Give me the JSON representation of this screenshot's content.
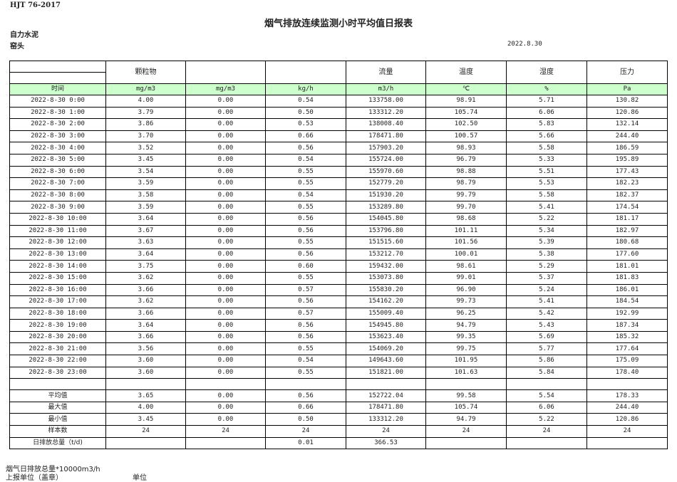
{
  "header": {
    "standard": "HJT  76-2017",
    "title": "烟气排放连续监测小时平均值日报表",
    "company": "自力水泥",
    "site": "窑头",
    "date": "2022.8.30"
  },
  "columns": [
    "",
    "颗粒物",
    "",
    "",
    "流量",
    "温度",
    "湿度",
    "压力"
  ],
  "units": [
    "时间",
    "mg/m3",
    "mg/m3",
    "kg/h",
    "m3/h",
    "℃",
    "%",
    "Pa"
  ],
  "rows": [
    [
      "2022-8-30 0:00",
      "4.00",
      "0.00",
      "0.54",
      "133758.00",
      "98.91",
      "5.71",
      "130.82"
    ],
    [
      "2022-8-30 1:00",
      "3.79",
      "0.00",
      "0.50",
      "133312.20",
      "105.74",
      "6.06",
      "120.86"
    ],
    [
      "2022-8-30 2:00",
      "3.86",
      "0.00",
      "0.53",
      "138008.40",
      "102.50",
      "5.83",
      "132.14"
    ],
    [
      "2022-8-30 3:00",
      "3.70",
      "0.00",
      "0.66",
      "178471.80",
      "100.57",
      "5.66",
      "244.40"
    ],
    [
      "2022-8-30 4:00",
      "3.52",
      "0.00",
      "0.56",
      "157903.20",
      "98.93",
      "5.58",
      "186.59"
    ],
    [
      "2022-8-30 5:00",
      "3.45",
      "0.00",
      "0.54",
      "155724.00",
      "96.79",
      "5.33",
      "195.89"
    ],
    [
      "2022-8-30 6:00",
      "3.54",
      "0.00",
      "0.55",
      "155970.60",
      "98.88",
      "5.51",
      "177.43"
    ],
    [
      "2022-8-30 7:00",
      "3.59",
      "0.00",
      "0.55",
      "152779.20",
      "98.79",
      "5.53",
      "182.23"
    ],
    [
      "2022-8-30 8:00",
      "3.58",
      "0.00",
      "0.54",
      "151930.20",
      "99.79",
      "5.58",
      "182.37"
    ],
    [
      "2022-8-30 9:00",
      "3.59",
      "0.00",
      "0.55",
      "153289.80",
      "99.70",
      "5.41",
      "174.54"
    ],
    [
      "2022-8-30 10:00",
      "3.64",
      "0.00",
      "0.56",
      "154045.80",
      "98.68",
      "5.22",
      "181.17"
    ],
    [
      "2022-8-30 11:00",
      "3.67",
      "0.00",
      "0.56",
      "153796.80",
      "101.11",
      "5.34",
      "182.97"
    ],
    [
      "2022-8-30 12:00",
      "3.63",
      "0.00",
      "0.55",
      "151515.60",
      "101.56",
      "5.39",
      "180.68"
    ],
    [
      "2022-8-30 13:00",
      "3.64",
      "0.00",
      "0.56",
      "153212.70",
      "100.01",
      "5.38",
      "177.60"
    ],
    [
      "2022-8-30 14:00",
      "3.75",
      "0.00",
      "0.60",
      "159432.00",
      "98.61",
      "5.29",
      "181.01"
    ],
    [
      "2022-8-30 15:00",
      "3.62",
      "0.00",
      "0.55",
      "153073.80",
      "99.01",
      "5.37",
      "181.83"
    ],
    [
      "2022-8-30 16:00",
      "3.66",
      "0.00",
      "0.57",
      "155830.20",
      "96.90",
      "5.24",
      "186.01"
    ],
    [
      "2022-8-30 17:00",
      "3.62",
      "0.00",
      "0.56",
      "154162.20",
      "99.73",
      "5.41",
      "184.54"
    ],
    [
      "2022-8-30 18:00",
      "3.66",
      "0.00",
      "0.57",
      "155009.40",
      "96.25",
      "5.42",
      "192.99"
    ],
    [
      "2022-8-30 19:00",
      "3.64",
      "0.00",
      "0.56",
      "154945.80",
      "94.79",
      "5.43",
      "187.34"
    ],
    [
      "2022-8-30 20:00",
      "3.66",
      "0.00",
      "0.56",
      "153623.40",
      "99.35",
      "5.69",
      "185.32"
    ],
    [
      "2022-8-30 21:00",
      "3.56",
      "0.00",
      "0.55",
      "154069.20",
      "99.75",
      "5.77",
      "177.64"
    ],
    [
      "2022-8-30 22:00",
      "3.60",
      "0.00",
      "0.54",
      "149643.60",
      "101.95",
      "5.86",
      "175.09"
    ],
    [
      "2022-8-30 23:00",
      "3.60",
      "0.00",
      "0.55",
      "151821.00",
      "101.63",
      "5.84",
      "178.40"
    ]
  ],
  "summary": [
    [
      "平均值",
      "3.65",
      "0.00",
      "0.56",
      "152722.04",
      "99.58",
      "5.54",
      "178.33"
    ],
    [
      "最大值",
      "4.00",
      "0.00",
      "0.66",
      "178471.80",
      "105.74",
      "6.06",
      "244.40"
    ],
    [
      "最小值",
      "3.45",
      "0.00",
      "0.50",
      "133312.20",
      "94.79",
      "5.22",
      "120.86"
    ],
    [
      "样本数",
      "24",
      "24",
      "24",
      "24",
      "24",
      "24",
      "24"
    ],
    [
      "日排放总量（t/d)",
      "",
      "",
      "0.01",
      "366.53",
      "",
      "",
      ""
    ]
  ],
  "footer": {
    "note": "烟气日排放总量*10000m3/h",
    "reporter": "上报单位（盖章）",
    "unit": "单位"
  },
  "colors": {
    "unit_row_bg": "#ccffcc",
    "border": "#000000"
  }
}
